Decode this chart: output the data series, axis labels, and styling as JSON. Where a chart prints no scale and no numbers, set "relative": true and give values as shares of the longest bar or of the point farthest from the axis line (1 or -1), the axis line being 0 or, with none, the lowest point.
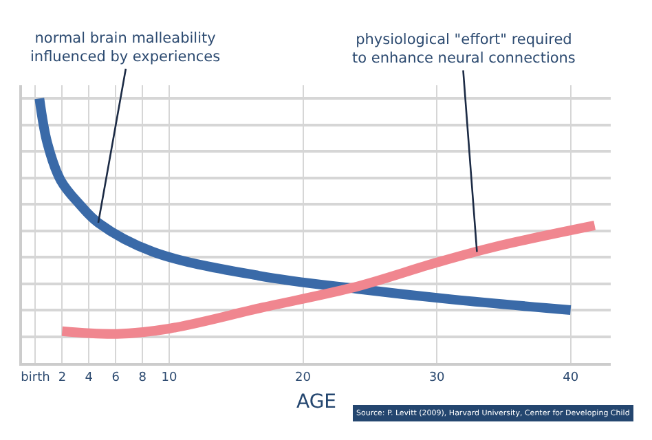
{
  "chart_data": {
    "type": "line",
    "relative": true,
    "xlabel": "AGE",
    "xlim": [
      -1,
      43
    ],
    "xticks": [
      {
        "value": 0,
        "label": "birth"
      },
      2,
      4,
      6,
      8,
      10,
      20,
      30,
      40
    ],
    "series": [
      {
        "color": "#3a6aa8",
        "x": [
          0.3,
          0.9,
          1.9,
          3.3,
          4.7,
          8.8,
          16.7,
          24.1,
          31.2,
          40
        ],
        "values": [
          1.0,
          0.83,
          0.69,
          0.6,
          0.53,
          0.42,
          0.33,
          0.28,
          0.24,
          0.2
        ]
      },
      {
        "color": "#f0868f",
        "x": [
          2,
          6.1,
          10,
          17,
          24.1,
          30,
          34.4,
          41.8
        ],
        "values": [
          0.12,
          0.11,
          0.13,
          0.21,
          0.29,
          0.38,
          0.44,
          0.52
        ]
      }
    ],
    "annotations": [
      {
        "text": "normal brain malleability\ninfluenced by experiences",
        "x": 4.7,
        "y": 0.53
      },
      {
        "text": "physiological \"effort\" required\nto enhance neural connections",
        "x": 33,
        "y": 0.42
      },
      "Source: P. Levitt (2009), Harvard University, Center for Developing Child"
    ],
    "grid": true,
    "marker": "none",
    "line_style": "solid"
  }
}
